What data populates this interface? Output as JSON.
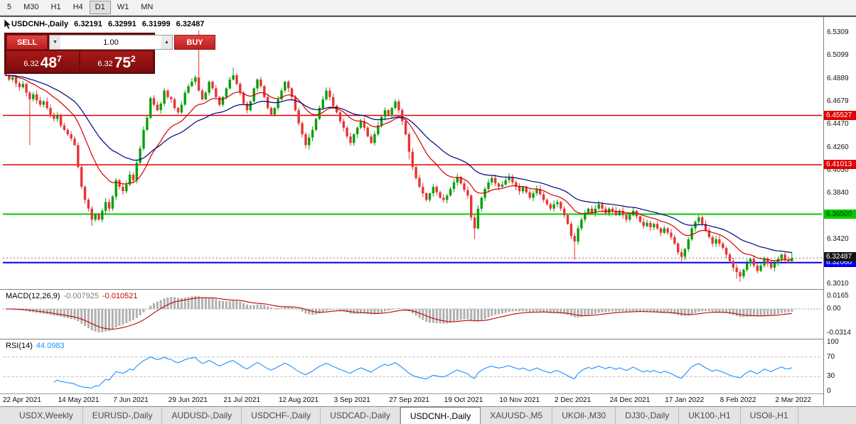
{
  "toolbar": {
    "timeframes": [
      "5",
      "M30",
      "H1",
      "H4",
      "D1",
      "W1",
      "MN"
    ],
    "active_timeframe": "D1"
  },
  "title_bar": {
    "symbol_period": "USDCNH-,Daily",
    "open": "6.32191",
    "high": "6.32991",
    "low": "6.31999",
    "close": "6.32487"
  },
  "trade_panel": {
    "sell_label": "SELL",
    "buy_label": "BUY",
    "volume": "1.00",
    "sell_price": {
      "prefix": "6.32",
      "pips": "48",
      "pip_sup": "7"
    },
    "buy_price": {
      "prefix": "6.32",
      "pips": "75",
      "pip_sup": "2"
    }
  },
  "icons": {
    "caret_up": "▲",
    "caret_down": "▼"
  },
  "price_axis_labels": [
    6.5309,
    6.5099,
    6.4889,
    6.4679,
    6.447,
    6.426,
    6.405,
    6.384,
    6.363,
    6.342,
    6.321,
    6.301
  ],
  "date_axis_labels": [
    {
      "label": "22 Apr 2021",
      "i": 0
    },
    {
      "label": "14 May 2021",
      "i": 16
    },
    {
      "label": "7 Jun 2021",
      "i": 32
    },
    {
      "label": "29 Jun 2021",
      "i": 48
    },
    {
      "label": "21 Jul 2021",
      "i": 64
    },
    {
      "label": "12 Aug 2021",
      "i": 80
    },
    {
      "label": "3 Sep 2021",
      "i": 96
    },
    {
      "label": "27 Sep 2021",
      "i": 112
    },
    {
      "label": "19 Oct 2021",
      "i": 128
    },
    {
      "label": "10 Nov 2021",
      "i": 144
    },
    {
      "label": "2 Dec 2021",
      "i": 160
    },
    {
      "label": "24 Dec 2021",
      "i": 176
    },
    {
      "label": "17 Jan 2022",
      "i": 192
    },
    {
      "label": "8 Feb 2022",
      "i": 208
    },
    {
      "label": "2 Mar 2022",
      "i": 224
    }
  ],
  "macd_panel": {
    "name": "MACD(12,26,9)",
    "value_main": "-0.007925",
    "value_signal": "-0.010521",
    "axis_labels": [
      {
        "text": "0.0165",
        "value": 0.0165
      },
      {
        "text": "0.00",
        "value": 0
      },
      {
        "text": "-0.0314",
        "value": -0.0314
      }
    ]
  },
  "rsi_panel": {
    "name": "RSI(14)",
    "value": "44.0983",
    "axis_labels": [
      {
        "text": "100",
        "value": 100
      },
      {
        "text": "70",
        "value": 70
      },
      {
        "text": "30",
        "value": 30
      },
      {
        "text": "0",
        "value": 0
      }
    ],
    "levels": [
      70,
      30
    ]
  },
  "tabs": [
    {
      "label": "USDX,Weekly",
      "active": false
    },
    {
      "label": "EURUSD-,Daily",
      "active": false
    },
    {
      "label": "AUDUSD-,Daily",
      "active": false
    },
    {
      "label": "USDCHF-,Daily",
      "active": false
    },
    {
      "label": "USDCAD-,Daily",
      "active": false
    },
    {
      "label": "USDCNH-,Daily",
      "active": true
    },
    {
      "label": "XAUUSD-,M5",
      "active": false
    },
    {
      "label": "UKOil-,M30",
      "active": false
    },
    {
      "label": "DJ30-,Daily",
      "active": false
    },
    {
      "label": "UK100-,H1",
      "active": false
    },
    {
      "label": "USOil-,H1",
      "active": false
    }
  ],
  "chart_data": {
    "type": "candlestick",
    "symbol": "USDCNH-",
    "period": "Daily",
    "price_range": [
      6.2984,
      6.5354
    ],
    "first_open": 6.496,
    "closes": [
      6.492,
      6.488,
      6.49,
      6.4845,
      6.481,
      6.484,
      6.476,
      6.47,
      6.4745,
      6.469,
      6.465,
      6.468,
      6.462,
      6.456,
      6.452,
      6.455,
      6.446,
      6.442,
      6.438,
      6.434,
      6.428,
      6.408,
      6.39,
      6.378,
      6.37,
      6.36,
      6.365,
      6.36,
      6.368,
      6.376,
      6.37,
      6.381,
      6.396,
      6.39,
      6.386,
      6.392,
      6.401,
      6.396,
      6.412,
      6.425,
      6.442,
      6.453,
      6.471,
      6.465,
      6.46,
      6.466,
      6.478,
      6.472,
      6.47,
      6.462,
      6.458,
      6.465,
      6.476,
      6.482,
      6.486,
      6.49,
      6.478,
      6.47,
      6.476,
      6.486,
      6.48,
      6.472,
      6.465,
      6.472,
      6.48,
      6.488,
      6.492,
      6.484,
      6.476,
      6.466,
      6.46,
      6.468,
      6.48,
      6.488,
      6.482,
      6.472,
      6.462,
      6.456,
      6.462,
      6.47,
      6.478,
      6.486,
      6.48,
      6.472,
      6.46,
      6.448,
      6.438,
      6.428,
      6.435,
      6.442,
      6.452,
      6.462,
      6.47,
      6.478,
      6.472,
      6.464,
      6.458,
      6.45,
      6.444,
      6.436,
      6.43,
      6.438,
      6.444,
      6.45,
      6.444,
      6.436,
      6.43,
      6.438,
      6.446,
      6.454,
      6.46,
      6.456,
      6.462,
      6.468,
      6.46,
      6.45,
      6.438,
      6.422,
      6.408,
      6.398,
      6.39,
      6.384,
      6.378,
      6.384,
      6.39,
      6.385,
      6.38,
      6.378,
      6.382,
      6.388,
      6.394,
      6.399,
      6.393,
      6.387,
      6.382,
      6.362,
      6.352,
      6.37,
      6.38,
      6.388,
      6.394,
      6.398,
      6.393,
      6.39,
      6.392,
      6.396,
      6.399,
      6.394,
      6.39,
      6.386,
      6.39,
      6.385,
      6.38,
      6.384,
      6.388,
      6.383,
      6.378,
      6.374,
      6.37,
      6.374,
      6.376,
      6.37,
      6.364,
      6.356,
      6.345,
      6.34,
      6.352,
      6.36,
      6.366,
      6.37,
      6.366,
      6.37,
      6.374,
      6.37,
      6.366,
      6.37,
      6.368,
      6.364,
      6.368,
      6.364,
      6.36,
      6.364,
      6.368,
      6.363,
      6.358,
      6.354,
      6.357,
      6.353,
      6.356,
      6.352,
      6.348,
      6.352,
      6.348,
      6.344,
      6.338,
      6.33,
      6.326,
      6.333,
      6.342,
      6.352,
      6.358,
      6.362,
      6.356,
      6.35,
      6.344,
      6.338,
      6.342,
      6.338,
      6.334,
      6.328,
      6.322,
      6.316,
      6.312,
      6.308,
      6.314,
      6.32,
      6.324,
      6.318,
      6.313,
      6.318,
      6.324,
      6.32,
      6.316,
      6.32,
      6.324,
      6.328,
      6.323,
      6.3219,
      6.3249
    ],
    "wick_overrides": {
      "7": {
        "low": 6.428
      },
      "25": {
        "low": 6.354
      },
      "56": {
        "high": 6.533
      },
      "66": {
        "high": 6.499
      },
      "88": {
        "low": 6.424
      },
      "117": {
        "low": 6.415
      },
      "136": {
        "low": 6.342
      },
      "165": {
        "low": 6.3235
      },
      "196": {
        "low": 6.321
      },
      "212": {
        "low": 6.306
      },
      "213": {
        "low": 6.303
      },
      "228": {
        "high": 6.32991,
        "low": 6.31999
      }
    },
    "last_candle": {
      "open": 6.32191,
      "high": 6.32991,
      "low": 6.31999,
      "close": 6.32487
    },
    "levels": [
      {
        "value": 6.45527,
        "label": "6.45527",
        "color": "#e00000",
        "text": "#ffffff",
        "width": 1.5
      },
      {
        "value": 6.41013,
        "label": "6.41013",
        "color": "#e00000",
        "text": "#ffffff",
        "width": 1.5
      },
      {
        "value": 6.365,
        "label": "6.36500",
        "color": "#00cc00",
        "text": "#003300",
        "width": 2
      },
      {
        "value": 6.3206,
        "label": "6.32060",
        "color": "#0000ee",
        "text": "#ffffff",
        "width": 2
      }
    ],
    "current_price": {
      "value": 6.32487,
      "label": "6.32487",
      "color": "#141414",
      "text": "#ffffff"
    },
    "ma": [
      {
        "type": "ema",
        "period": 16,
        "key": "ma_fast"
      },
      {
        "type": "ema",
        "period": 34,
        "key": "ma_slow"
      }
    ],
    "colors": {
      "up": "#07a007",
      "down": "#e33636",
      "ma_fast": "#d40000",
      "ma_slow": "#000080",
      "macd_hist": "#b0b0b0",
      "macd_signal": "#c00000",
      "rsi": "#1e90ff"
    }
  }
}
